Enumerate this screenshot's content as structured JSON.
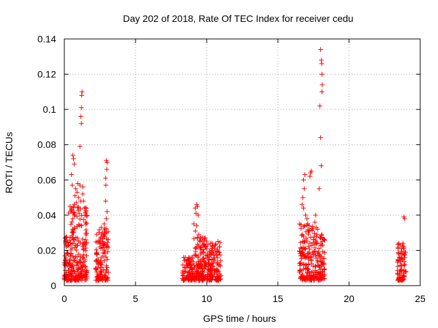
{
  "chart_data": {
    "type": "scatter",
    "title": "Day 202 of 2018, Rate Of TEC Index for receiver cedu",
    "xlabel": "GPS time / hours",
    "ylabel": "ROTI / TECUs",
    "xlim": [
      0,
      25
    ],
    "ylim": [
      0,
      0.14
    ],
    "grid": true,
    "x_ticks": [
      0,
      5,
      10,
      15,
      20,
      25
    ],
    "x_tick_labels": [
      "0",
      "5",
      "10",
      "15",
      "20",
      "25"
    ],
    "y_ticks": [
      0,
      0.02,
      0.04,
      0.06,
      0.08,
      0.1,
      0.12,
      0.14
    ],
    "y_tick_labels": [
      "0",
      "0.02",
      "0.04",
      "0.06",
      "0.08",
      "0.1",
      "0.12",
      "0.14"
    ],
    "marker": "+",
    "color": "#ff0000",
    "series": [
      {
        "name": "ROTI",
        "clusters": [
          {
            "x_range": [
              0.0,
              0.3
            ],
            "y_range": [
              0.003,
              0.028
            ],
            "count": 60
          },
          {
            "x_range": [
              0.3,
              1.6
            ],
            "y_range": [
              0.003,
              0.045
            ],
            "count": 220
          },
          {
            "x_range": [
              2.2,
              3.1
            ],
            "y_range": [
              0.003,
              0.033
            ],
            "count": 120
          },
          {
            "x_range": [
              8.3,
              9.1
            ],
            "y_range": [
              0.003,
              0.016
            ],
            "count": 90
          },
          {
            "x_range": [
              9.1,
              10.0
            ],
            "y_range": [
              0.003,
              0.028
            ],
            "count": 140
          },
          {
            "x_range": [
              10.0,
              11.0
            ],
            "y_range": [
              0.003,
              0.025
            ],
            "count": 130
          },
          {
            "x_range": [
              16.5,
              17.5
            ],
            "y_range": [
              0.003,
              0.035
            ],
            "count": 130
          },
          {
            "x_range": [
              17.5,
              18.3
            ],
            "y_range": [
              0.003,
              0.03
            ],
            "count": 100
          },
          {
            "x_range": [
              23.4,
              24.0
            ],
            "y_range": [
              0.003,
              0.024
            ],
            "count": 80
          }
        ],
        "points": [
          [
            0.05,
            0.027
          ],
          [
            0.1,
            0.025
          ],
          [
            0.15,
            0.022
          ],
          [
            0.5,
            0.063
          ],
          [
            0.6,
            0.074
          ],
          [
            0.65,
            0.072
          ],
          [
            0.7,
            0.069
          ],
          [
            0.55,
            0.057
          ],
          [
            0.75,
            0.051
          ],
          [
            0.8,
            0.055
          ],
          [
            0.9,
            0.053
          ],
          [
            0.95,
            0.058
          ],
          [
            1.0,
            0.05
          ],
          [
            1.1,
            0.079
          ],
          [
            1.15,
            0.096
          ],
          [
            1.2,
            0.092
          ],
          [
            1.2,
            0.101
          ],
          [
            1.22,
            0.108
          ],
          [
            1.25,
            0.11
          ],
          [
            1.3,
            0.056
          ],
          [
            1.35,
            0.048
          ],
          [
            1.4,
            0.044
          ],
          [
            1.45,
            0.04
          ],
          [
            1.5,
            0.036
          ],
          [
            0.4,
            0.045
          ],
          [
            0.45,
            0.042
          ],
          [
            0.6,
            0.038
          ],
          [
            0.7,
            0.046
          ],
          [
            0.85,
            0.047
          ],
          [
            1.05,
            0.041
          ],
          [
            1.1,
            0.057
          ],
          [
            1.3,
            0.052
          ],
          [
            1.15,
            0.048
          ],
          [
            2.6,
            0.033
          ],
          [
            2.7,
            0.03
          ],
          [
            2.75,
            0.028
          ],
          [
            2.85,
            0.032
          ],
          [
            2.95,
            0.071
          ],
          [
            3.0,
            0.07
          ],
          [
            2.98,
            0.066
          ],
          [
            2.9,
            0.061
          ],
          [
            2.92,
            0.057
          ],
          [
            2.9,
            0.048
          ],
          [
            3.0,
            0.042
          ],
          [
            2.95,
            0.038
          ],
          [
            2.8,
            0.035
          ],
          [
            2.7,
            0.025
          ],
          [
            8.5,
            0.016
          ],
          [
            8.7,
            0.015
          ],
          [
            8.9,
            0.014
          ],
          [
            9.2,
            0.044
          ],
          [
            9.3,
            0.046
          ],
          [
            9.35,
            0.045
          ],
          [
            9.25,
            0.041
          ],
          [
            9.4,
            0.04
          ],
          [
            9.1,
            0.035
          ],
          [
            9.3,
            0.034
          ],
          [
            9.2,
            0.031
          ],
          [
            9.45,
            0.029
          ],
          [
            9.55,
            0.027
          ],
          [
            9.7,
            0.025
          ],
          [
            9.8,
            0.023
          ],
          [
            10.0,
            0.021
          ],
          [
            10.2,
            0.019
          ],
          [
            10.4,
            0.02
          ],
          [
            10.6,
            0.023
          ],
          [
            10.8,
            0.025
          ],
          [
            10.9,
            0.022
          ],
          [
            16.8,
            0.06
          ],
          [
            16.9,
            0.063
          ],
          [
            16.85,
            0.055
          ],
          [
            16.75,
            0.05
          ],
          [
            16.7,
            0.046
          ],
          [
            16.8,
            0.044
          ],
          [
            16.95,
            0.04
          ],
          [
            17.05,
            0.038
          ],
          [
            17.1,
            0.035
          ],
          [
            17.2,
            0.034
          ],
          [
            17.3,
            0.064
          ],
          [
            17.35,
            0.065
          ],
          [
            17.25,
            0.062
          ],
          [
            17.6,
            0.036
          ],
          [
            17.65,
            0.04
          ],
          [
            17.7,
            0.033
          ],
          [
            17.8,
            0.032
          ],
          [
            18.0,
            0.134
          ],
          [
            18.05,
            0.128
          ],
          [
            18.08,
            0.126
          ],
          [
            18.1,
            0.12
          ],
          [
            18.12,
            0.114
          ],
          [
            18.1,
            0.11
          ],
          [
            17.95,
            0.102
          ],
          [
            18.0,
            0.084
          ],
          [
            18.05,
            0.068
          ],
          [
            17.9,
            0.055
          ],
          [
            18.0,
            0.027
          ],
          [
            18.1,
            0.025
          ],
          [
            18.15,
            0.023
          ],
          [
            23.5,
            0.024
          ],
          [
            23.6,
            0.023
          ],
          [
            23.7,
            0.021
          ],
          [
            23.8,
            0.024
          ],
          [
            23.85,
            0.039
          ],
          [
            23.9,
            0.038
          ],
          [
            23.85,
            0.018
          ],
          [
            23.55,
            0.016
          ]
        ]
      }
    ]
  }
}
